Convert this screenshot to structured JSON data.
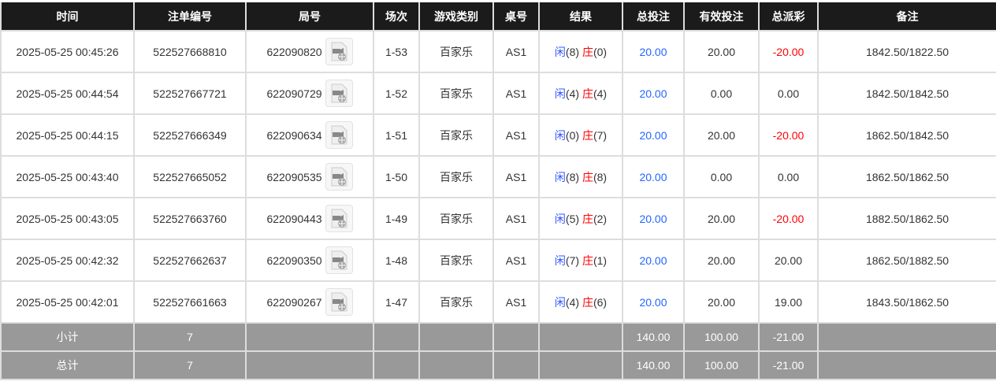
{
  "headers": [
    "时间",
    "注单编号",
    "局号",
    "场次",
    "游戏类别",
    "桌号",
    "结果",
    "总投注",
    "有效投注",
    "总派彩",
    "备注"
  ],
  "rows": [
    {
      "time": "2025-05-25 00:45:26",
      "bet_id": "522527668810",
      "round_id": "622090820",
      "shoe": "1-53",
      "game": "百家乐",
      "table": "AS1",
      "player_label": "闲",
      "player": "(8)",
      "banker_label": "庄",
      "banker": "(0)",
      "total_bet": "20.00",
      "valid_bet": "20.00",
      "payout": "-20.00",
      "payout_negative": true,
      "note": "1842.50/1822.50"
    },
    {
      "time": "2025-05-25 00:44:54",
      "bet_id": "522527667721",
      "round_id": "622090729",
      "shoe": "1-52",
      "game": "百家乐",
      "table": "AS1",
      "player_label": "闲",
      "player": "(4)",
      "banker_label": "庄",
      "banker": "(4)",
      "total_bet": "20.00",
      "valid_bet": "0.00",
      "payout": "0.00",
      "payout_negative": false,
      "note": "1842.50/1842.50"
    },
    {
      "time": "2025-05-25 00:44:15",
      "bet_id": "522527666349",
      "round_id": "622090634",
      "shoe": "1-51",
      "game": "百家乐",
      "table": "AS1",
      "player_label": "闲",
      "player": "(0)",
      "banker_label": "庄",
      "banker": "(7)",
      "total_bet": "20.00",
      "valid_bet": "20.00",
      "payout": "-20.00",
      "payout_negative": true,
      "note": "1862.50/1842.50"
    },
    {
      "time": "2025-05-25 00:43:40",
      "bet_id": "522527665052",
      "round_id": "622090535",
      "shoe": "1-50",
      "game": "百家乐",
      "table": "AS1",
      "player_label": "闲",
      "player": "(8)",
      "banker_label": "庄",
      "banker": "(8)",
      "total_bet": "20.00",
      "valid_bet": "0.00",
      "payout": "0.00",
      "payout_negative": false,
      "note": "1862.50/1862.50"
    },
    {
      "time": "2025-05-25 00:43:05",
      "bet_id": "522527663760",
      "round_id": "622090443",
      "shoe": "1-49",
      "game": "百家乐",
      "table": "AS1",
      "player_label": "闲",
      "player": "(5)",
      "banker_label": "庄",
      "banker": "(2)",
      "total_bet": "20.00",
      "valid_bet": "20.00",
      "payout": "-20.00",
      "payout_negative": true,
      "note": "1882.50/1862.50"
    },
    {
      "time": "2025-05-25 00:42:32",
      "bet_id": "522527662637",
      "round_id": "622090350",
      "shoe": "1-48",
      "game": "百家乐",
      "table": "AS1",
      "player_label": "闲",
      "player": "(7)",
      "banker_label": "庄",
      "banker": "(1)",
      "total_bet": "20.00",
      "valid_bet": "20.00",
      "payout": "20.00",
      "payout_negative": false,
      "note": "1862.50/1882.50"
    },
    {
      "time": "2025-05-25 00:42:01",
      "bet_id": "522527661663",
      "round_id": "622090267",
      "shoe": "1-47",
      "game": "百家乐",
      "table": "AS1",
      "player_label": "闲",
      "player": "(4)",
      "banker_label": "庄",
      "banker": "(6)",
      "total_bet": "20.00",
      "valid_bet": "20.00",
      "payout": "19.00",
      "payout_negative": false,
      "note": "1843.50/1862.50"
    }
  ],
  "subtotal": {
    "label": "小计",
    "count": "7",
    "total_bet": "140.00",
    "valid_bet": "100.00",
    "payout": "-21.00"
  },
  "total": {
    "label": "总计",
    "count": "7",
    "total_bet": "140.00",
    "valid_bet": "100.00",
    "payout": "-21.00"
  },
  "icons": {
    "replay": "video-file-icon"
  },
  "colors": {
    "header_bg": "#1b1b1b",
    "sum_bg": "#999999",
    "bet_blue": "#2266ff",
    "negative_red": "#ff0000"
  }
}
